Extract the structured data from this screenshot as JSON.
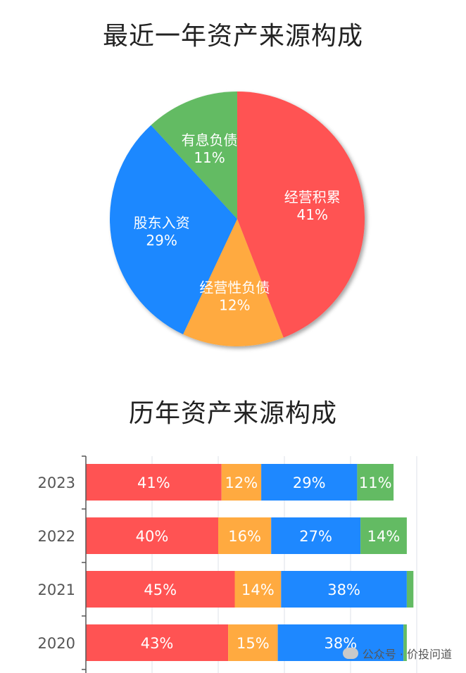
{
  "watermark": {
    "text": "公众号 · 价投问道",
    "icon": "wechat-icon"
  },
  "chart_data": [
    {
      "type": "pie",
      "title": "最近一年资产来源构成",
      "slices": [
        {
          "label": "经营积累",
          "value": 41,
          "display": "41%",
          "color": "#ff5353"
        },
        {
          "label": "经营性负债",
          "value": 12,
          "display": "12%",
          "color": "#ffaa40"
        },
        {
          "label": "股东入资",
          "value": 29,
          "display": "29%",
          "color": "#1e88ff"
        },
        {
          "label": "有息负债",
          "value": 11,
          "display": "11%",
          "color": "#63bb63"
        }
      ]
    },
    {
      "type": "bar",
      "orientation": "horizontal",
      "stacked": true,
      "title": "历年资产来源构成",
      "categories": [
        "2023",
        "2022",
        "2021",
        "2020"
      ],
      "series": [
        {
          "values": [
            41,
            40,
            45,
            43
          ],
          "labels": [
            "41%",
            "40%",
            "45%",
            "43%"
          ],
          "color": "#ff5353"
        },
        {
          "values": [
            12,
            16,
            14,
            15
          ],
          "labels": [
            "12%",
            "16%",
            "14%",
            "15%"
          ],
          "color": "#ffaa40"
        },
        {
          "values": [
            29,
            27,
            38,
            38
          ],
          "labels": [
            "29%",
            "27%",
            "38%",
            "38%"
          ],
          "color": "#1e88ff"
        },
        {
          "values": [
            11,
            14,
            2,
            1
          ],
          "labels": [
            "11%",
            "14%",
            "",
            ""
          ],
          "color": "#63bb63"
        }
      ],
      "xlim": [
        0,
        100
      ],
      "grid": true
    }
  ]
}
